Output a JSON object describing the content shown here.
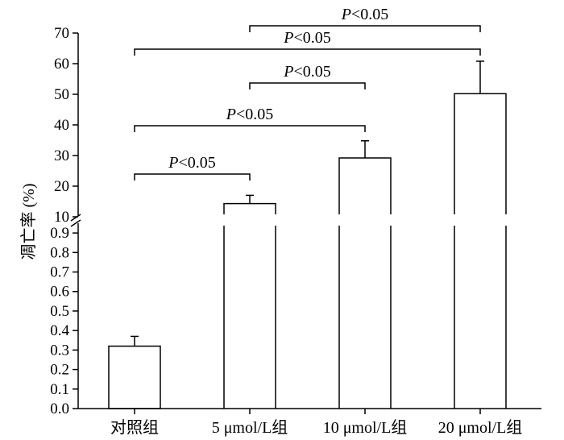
{
  "chart_data": {
    "type": "bar",
    "ylabel": "凋亡率 (%)",
    "categories": [
      "对照组",
      "5 μmol/L组",
      "10 μmol/L组",
      "20 μmol/L组"
    ],
    "values": [
      0.32,
      14.3,
      29.2,
      50.2
    ],
    "errors": [
      0.05,
      2.7,
      5.6,
      10.6
    ],
    "y_axis_break": true,
    "y_lower_segment": {
      "ylim": [
        0,
        0.95
      ],
      "ticks": [
        "0.0",
        "0.1",
        "0.2",
        "0.3",
        "0.4",
        "0.5",
        "0.6",
        "0.7",
        "0.8",
        "0.9"
      ]
    },
    "y_upper_segment": {
      "ylim": [
        10,
        70
      ],
      "ticks": [
        "10",
        "20",
        "30",
        "40",
        "50",
        "60",
        "70"
      ]
    },
    "significance": [
      {
        "from": 0,
        "to": 1,
        "p_prefix": "P",
        "p_rest": "<0.05"
      },
      {
        "from": 0,
        "to": 2,
        "p_prefix": "P",
        "p_rest": "<0.05"
      },
      {
        "from": 1,
        "to": 2,
        "p_prefix": "P",
        "p_rest": "<0.05"
      },
      {
        "from": 0,
        "to": 3,
        "p_prefix": "P",
        "p_rest": "<0.05"
      },
      {
        "from": 1,
        "to": 3,
        "p_prefix": "P",
        "p_rest": "<0.05"
      }
    ],
    "grid": false,
    "legend": false
  }
}
